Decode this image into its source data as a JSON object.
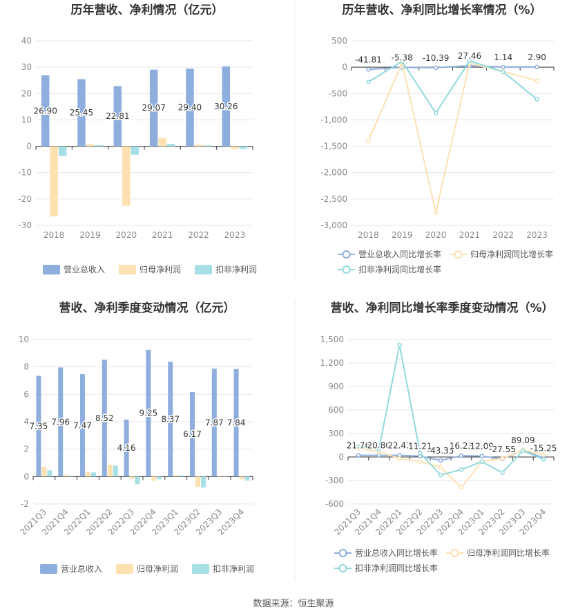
{
  "footer": "数据来源：恒生聚源",
  "colors": {
    "revenue": "#8eaedd",
    "net_profit": "#fde1b0",
    "deducted_profit": "#a6dfe5",
    "revenue_line": "#8eaedd",
    "net_profit_line": "#fde1b0",
    "deducted_line": "#8fd9dd",
    "grid": "#e6e6e6",
    "axis": "#333333"
  },
  "chart_data": [
    {
      "id": "annual_values",
      "type": "bar",
      "title": "历年营收、净利情况（亿元）",
      "categories": [
        "2018",
        "2019",
        "2020",
        "2021",
        "2022",
        "2023"
      ],
      "ylim": [
        -30,
        40
      ],
      "yticks": [
        40,
        30,
        20,
        10,
        0,
        -10,
        -20,
        -30
      ],
      "series": [
        {
          "name": "营业总收入",
          "values": [
            26.9,
            25.45,
            22.81,
            29.07,
            29.4,
            30.26
          ],
          "labels": [
            "26.90",
            "25.45",
            "22.81",
            "29.07",
            "29.40",
            "30.26"
          ]
        },
        {
          "name": "归母净利润",
          "values": [
            -26.6,
            0.8,
            -22.6,
            3.2,
            0.6,
            -1.0
          ]
        },
        {
          "name": "扣非净利润",
          "values": [
            -3.7,
            0.4,
            -3.2,
            0.9,
            0.3,
            -1.0
          ]
        }
      ],
      "legend": "bottom"
    },
    {
      "id": "annual_growth",
      "type": "line",
      "title": "历年营收、净利同比增长率情况（%）",
      "categories": [
        "2018",
        "2019",
        "2020",
        "2021",
        "2022",
        "2023"
      ],
      "ylim": [
        -3000,
        500
      ],
      "yticks": [
        "500",
        "0",
        "-500",
        "-1,000",
        "-1,500",
        "-2,000",
        "-2,500",
        "-3,000"
      ],
      "series": [
        {
          "name": "营业总收入同比增长率",
          "values": [
            -41.81,
            -5.38,
            -10.39,
            27.46,
            1.14,
            2.9
          ],
          "labels": [
            "-41.81",
            "-5.38",
            "-10.39",
            "27.46",
            "1.14",
            "2.90"
          ]
        },
        {
          "name": "归母净利润同比增长率",
          "values": [
            -1400,
            80,
            -2760,
            75,
            -80,
            -260
          ]
        },
        {
          "name": "扣非净利润同比增长率",
          "values": [
            -280,
            110,
            -870,
            120,
            -90,
            -610
          ]
        }
      ],
      "legend": "bottom"
    },
    {
      "id": "quarterly_values",
      "type": "bar",
      "title": "营收、净利季度变动情况（亿元）",
      "categories": [
        "2021Q3",
        "2021Q4",
        "2022Q1",
        "2022Q2",
        "2022Q3",
        "2022Q4",
        "2023Q1",
        "2023Q2",
        "2023Q3",
        "2023Q4"
      ],
      "ylim": [
        -2,
        10
      ],
      "yticks": [
        10,
        8,
        6,
        4,
        2,
        0,
        -2
      ],
      "series": [
        {
          "name": "营业总收入",
          "values": [
            7.35,
            7.96,
            7.47,
            8.52,
            4.16,
            9.25,
            8.37,
            6.17,
            7.87,
            7.84
          ],
          "labels": [
            "7.35",
            "7.96",
            "7.47",
            "8.52",
            "4.16",
            "9.25",
            "8.37",
            "6.17",
            "7.87",
            "7.84"
          ]
        },
        {
          "name": "归母净利润",
          "values": [
            0.72,
            0.12,
            0.35,
            0.85,
            -0.15,
            -0.3,
            0.1,
            -0.75,
            0.0,
            -0.2
          ]
        },
        {
          "name": "扣非净利润",
          "values": [
            0.45,
            0.05,
            0.3,
            0.8,
            -0.55,
            -0.2,
            0.08,
            -0.8,
            0.0,
            -0.3
          ]
        }
      ],
      "legend": "bottom"
    },
    {
      "id": "quarterly_growth",
      "type": "line",
      "title": "营收、净利同比增长率季度变动情况（%）",
      "categories": [
        "2021Q3",
        "2021Q4",
        "2022Q1",
        "2022Q2",
        "2022Q3",
        "2022Q4",
        "2023Q1",
        "2023Q2",
        "2023Q3",
        "2023Q4"
      ],
      "ylim": [
        -600,
        1500
      ],
      "yticks": [
        "1,500",
        "1,200",
        "900",
        "600",
        "300",
        "0",
        "-300",
        "-600"
      ],
      "series": [
        {
          "name": "营业总收入同比增长率",
          "values": [
            21.76,
            20.8,
            22.43,
            11.21,
            -43.35,
            16.23,
            12.09,
            -27.55,
            89.09,
            -15.25
          ],
          "labels": [
            "21.76",
            "20.80",
            "22.43",
            "11.21",
            "-43.35",
            "16.23",
            "12.09",
            "-27.55",
            "89.09",
            "-15.25"
          ]
        },
        {
          "name": "归母净利润同比增长率",
          "values": [
            110,
            70,
            -20,
            -60,
            -130,
            -390,
            -60,
            -20,
            90,
            30
          ]
        },
        {
          "name": "扣非净利润同比增长率",
          "values": [
            130,
            100,
            1430,
            50,
            -230,
            -160,
            -60,
            -200,
            80,
            -30
          ]
        }
      ],
      "legend": "bottom"
    }
  ]
}
